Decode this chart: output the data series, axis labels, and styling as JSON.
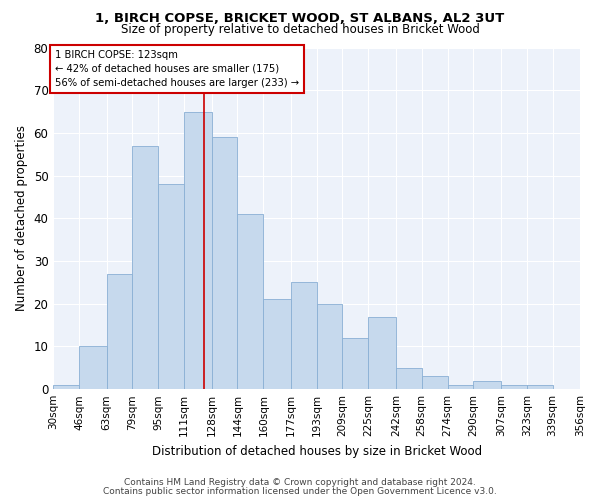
{
  "title": "1, BIRCH COPSE, BRICKET WOOD, ST ALBANS, AL2 3UT",
  "subtitle": "Size of property relative to detached houses in Bricket Wood",
  "xlabel": "Distribution of detached houses by size in Bricket Wood",
  "ylabel": "Number of detached properties",
  "footnote1": "Contains HM Land Registry data © Crown copyright and database right 2024.",
  "footnote2": "Contains public sector information licensed under the Open Government Licence v3.0.",
  "annotation_line1": "1 BIRCH COPSE: 123sqm",
  "annotation_line2": "← 42% of detached houses are smaller (175)",
  "annotation_line3": "56% of semi-detached houses are larger (233) →",
  "bin_edges": [
    30,
    46,
    63,
    79,
    95,
    111,
    128,
    144,
    160,
    177,
    193,
    209,
    225,
    242,
    258,
    274,
    290,
    307,
    323,
    339,
    356
  ],
  "bar_heights": [
    1,
    10,
    27,
    57,
    48,
    65,
    59,
    41,
    21,
    25,
    20,
    12,
    17,
    5,
    3,
    1,
    2,
    1,
    1,
    0
  ],
  "bin_labels": [
    "30sqm",
    "46sqm",
    "63sqm",
    "79sqm",
    "95sqm",
    "111sqm",
    "128sqm",
    "144sqm",
    "160sqm",
    "177sqm",
    "193sqm",
    "209sqm",
    "225sqm",
    "242sqm",
    "258sqm",
    "274sqm",
    "290sqm",
    "307sqm",
    "323sqm",
    "339sqm",
    "356sqm"
  ],
  "bar_color": "#c6d9ed",
  "bar_edge_color": "#89afd4",
  "vertical_line_x": 123,
  "vertical_line_color": "#cc0000",
  "annotation_box_color": "#cc0000",
  "background_color": "#edf2fa",
  "ylim": [
    0,
    80
  ],
  "yticks": [
    0,
    10,
    20,
    30,
    40,
    50,
    60,
    70,
    80
  ]
}
